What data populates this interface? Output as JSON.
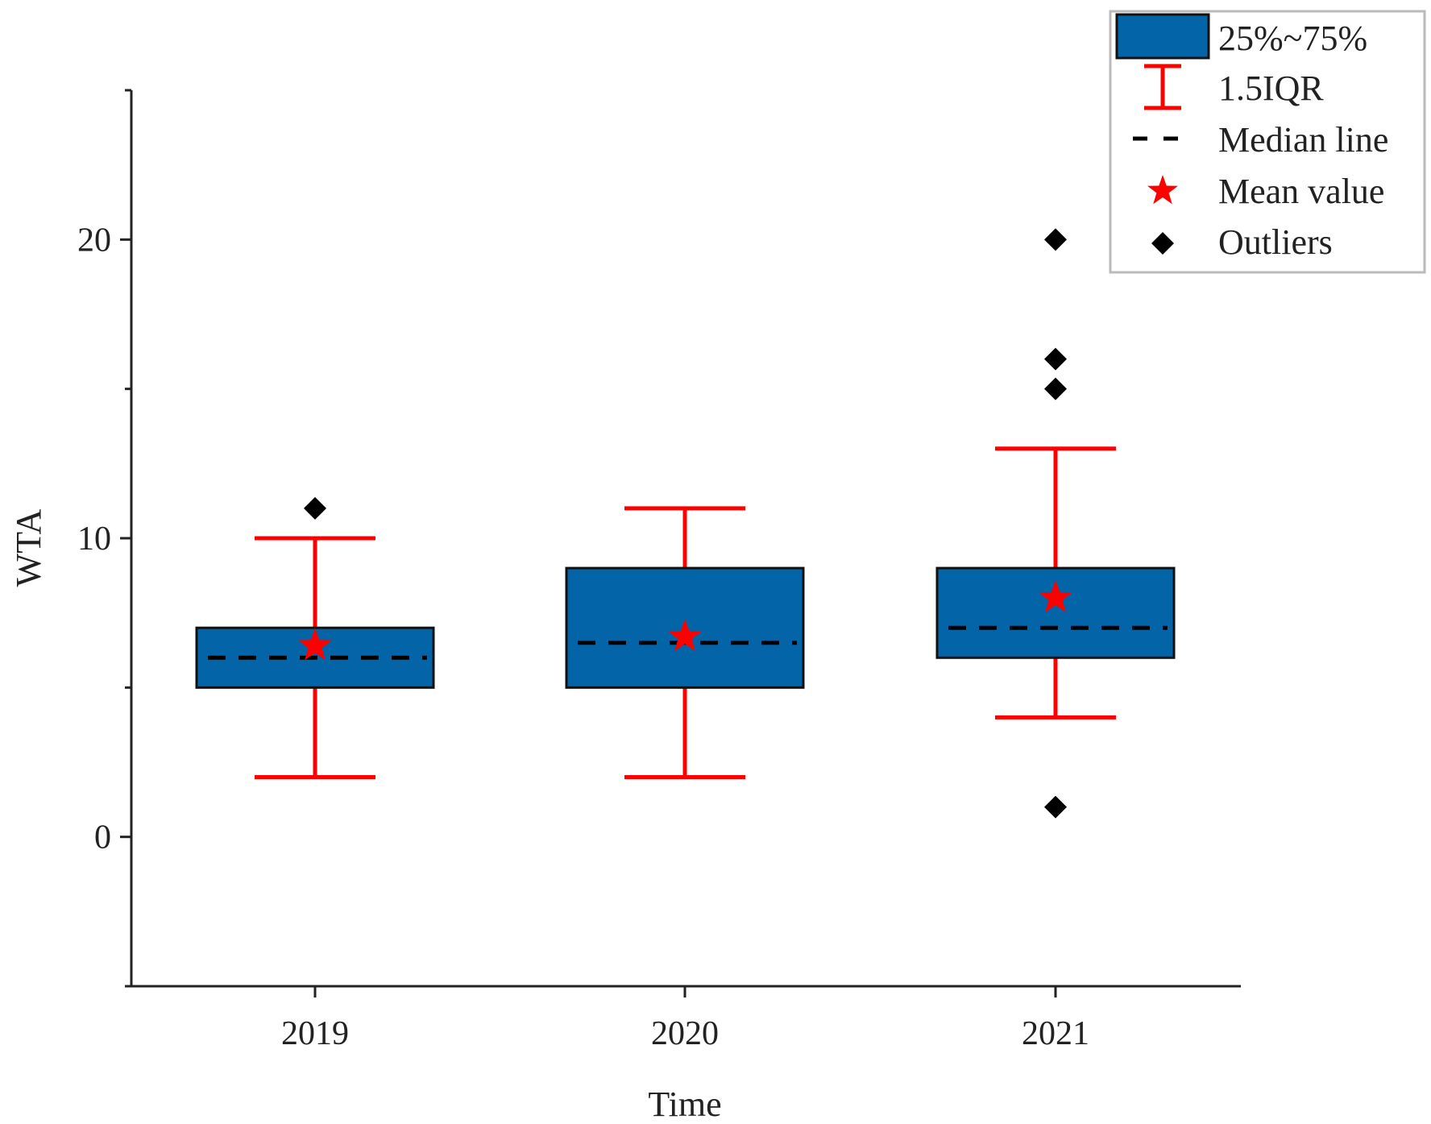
{
  "chart_data": {
    "type": "box",
    "xlabel": "Time",
    "ylabel": "WTA",
    "ylim": [
      -5,
      25
    ],
    "yticks": [
      0,
      10,
      20
    ],
    "categories": [
      "2019",
      "2020",
      "2021"
    ],
    "boxes": [
      {
        "category": "2019",
        "whisker_low": 2,
        "q1": 5,
        "median": 6,
        "q3": 7,
        "whisker_high": 10,
        "mean": 6.4,
        "outliers": [
          11
        ]
      },
      {
        "category": "2020",
        "whisker_low": 2,
        "q1": 5,
        "median": 6.5,
        "q3": 9,
        "whisker_high": 11,
        "mean": 6.7,
        "outliers": []
      },
      {
        "category": "2021",
        "whisker_low": 4,
        "q1": 6,
        "median": 7,
        "q3": 9,
        "whisker_high": 13,
        "mean": 8,
        "outliers": [
          1,
          15,
          16,
          20
        ]
      }
    ],
    "legend": {
      "position": "top-right",
      "items": [
        {
          "key": "box",
          "label": "25%~75%"
        },
        {
          "key": "whisker",
          "label": "1.5IQR"
        },
        {
          "key": "median",
          "label": "Median line"
        },
        {
          "key": "mean",
          "label": "Mean value"
        },
        {
          "key": "outlier",
          "label": "Outliers"
        }
      ]
    },
    "colors": {
      "box_fill": "#0464a8",
      "box_edge": "#111111",
      "whisker": "#ff0000",
      "median": "#000000",
      "mean": "#ff0000",
      "outlier": "#000000",
      "axis": "#222222"
    },
    "grid": false
  }
}
